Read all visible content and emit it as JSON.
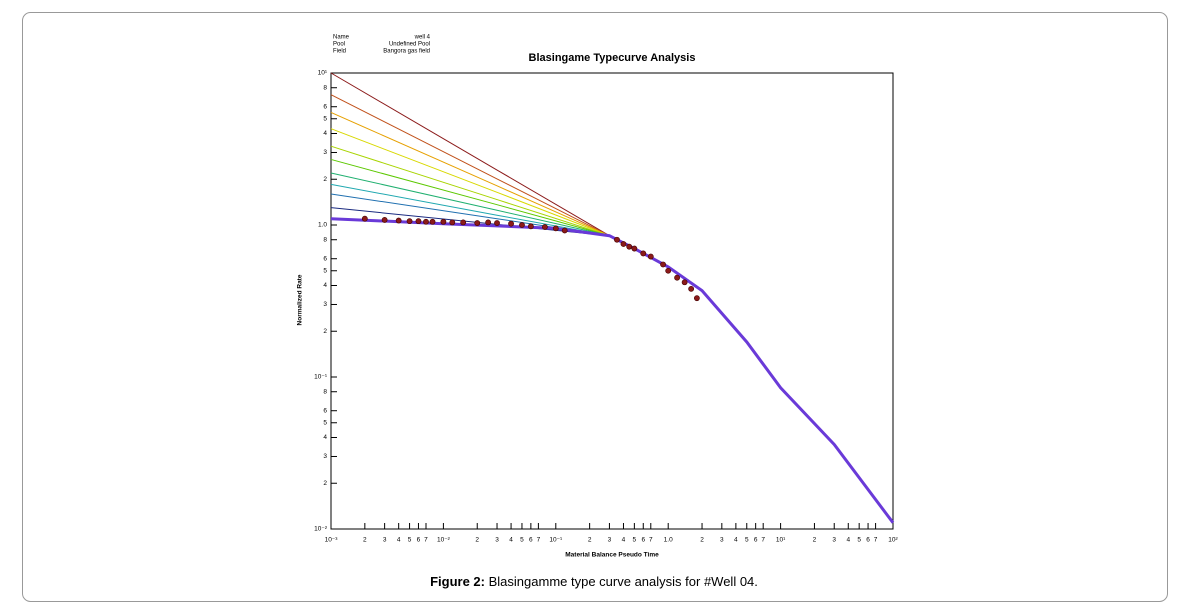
{
  "info": [
    {
      "key": "Name",
      "value": "well 4"
    },
    {
      "key": "Pool",
      "value": "Undefined Pool"
    },
    {
      "key": "Field",
      "value": "Bangora gas field"
    }
  ],
  "caption": {
    "label": "Figure 2:",
    "text": "Blasingamme type curve analysis for #Well 04."
  },
  "chart_data": {
    "type": "line",
    "title": "Blasingame Typecurve Analysis",
    "x_label": "Material Balance Pseudo Time",
    "y_label": "Normalized Rate",
    "xscale": "log",
    "yscale": "log",
    "xlim": [
      0.001,
      100
    ],
    "ylim": [
      0.01,
      10
    ],
    "xticks": [
      {
        "value": 0.001,
        "label": "10⁻³"
      },
      {
        "value": 0.002,
        "label": "2"
      },
      {
        "value": 0.003,
        "label": "3"
      },
      {
        "value": 0.004,
        "label": "4"
      },
      {
        "value": 0.005,
        "label": "5"
      },
      {
        "value": 0.006,
        "label": "6"
      },
      {
        "value": 0.007,
        "label": "7"
      },
      {
        "value": 0.01,
        "label": "10⁻²"
      },
      {
        "value": 0.02,
        "label": "2"
      },
      {
        "value": 0.03,
        "label": "3"
      },
      {
        "value": 0.04,
        "label": "4"
      },
      {
        "value": 0.05,
        "label": "5"
      },
      {
        "value": 0.06,
        "label": "6"
      },
      {
        "value": 0.07,
        "label": "7"
      },
      {
        "value": 0.1,
        "label": "10⁻¹"
      },
      {
        "value": 0.2,
        "label": "2"
      },
      {
        "value": 0.3,
        "label": "3"
      },
      {
        "value": 0.4,
        "label": "4"
      },
      {
        "value": 0.5,
        "label": "5"
      },
      {
        "value": 0.6,
        "label": "6"
      },
      {
        "value": 0.7,
        "label": "7"
      },
      {
        "value": 1,
        "label": "1.0"
      },
      2,
      3,
      4,
      5,
      6,
      7,
      {
        "value": 10,
        "label": "10¹"
      },
      {
        "value": 20,
        "label": "2"
      },
      {
        "value": 30,
        "label": "3"
      },
      {
        "value": 40,
        "label": "4"
      },
      {
        "value": 50,
        "label": "5"
      },
      {
        "value": 60,
        "label": "6"
      },
      {
        "value": 70,
        "label": "7"
      },
      {
        "value": 100,
        "label": "10²"
      }
    ],
    "yticks": [
      {
        "value": 10,
        "label": "10¹"
      },
      8,
      6,
      5,
      4,
      3,
      2,
      {
        "value": 1,
        "label": "1.0"
      },
      {
        "value": 0.8,
        "label": "8"
      },
      {
        "value": 0.6,
        "label": "6"
      },
      {
        "value": 0.5,
        "label": "5"
      },
      {
        "value": 0.4,
        "label": "4"
      },
      {
        "value": 0.3,
        "label": "3"
      },
      {
        "value": 0.2,
        "label": "2"
      },
      {
        "value": 0.1,
        "label": "10⁻¹"
      },
      {
        "value": 0.08,
        "label": "8"
      },
      {
        "value": 0.06,
        "label": "6"
      },
      {
        "value": 0.05,
        "label": "5"
      },
      {
        "value": 0.04,
        "label": "4"
      },
      {
        "value": 0.03,
        "label": "3"
      },
      {
        "value": 0.02,
        "label": "2"
      },
      {
        "value": 0.01,
        "label": "10⁻²"
      }
    ],
    "series": [
      {
        "color": "#8b1a1a",
        "x": [
          0.001,
          0.03,
          0.3
        ],
        "values": [
          10,
          2.3,
          0.85
        ]
      },
      {
        "color": "#c0501a",
        "x": [
          0.001,
          0.03,
          0.3
        ],
        "values": [
          7.2,
          2.01,
          0.85
        ]
      },
      {
        "color": "#e6a000",
        "x": [
          0.001,
          0.03,
          0.3
        ],
        "values": [
          5.5,
          1.81,
          0.85
        ]
      },
      {
        "color": "#d8d800",
        "x": [
          0.001,
          0.03,
          0.3
        ],
        "values": [
          4.3,
          1.64,
          0.85
        ]
      },
      {
        "color": "#a8d400",
        "x": [
          0.001,
          0.03,
          0.3
        ],
        "values": [
          3.3,
          1.47,
          0.85
        ]
      },
      {
        "color": "#5cc800",
        "x": [
          0.001,
          0.03,
          0.3
        ],
        "values": [
          2.7,
          1.36,
          0.85
        ]
      },
      {
        "color": "#20b070",
        "x": [
          0.001,
          0.03,
          0.3
        ],
        "values": [
          2.2,
          1.25,
          0.85
        ]
      },
      {
        "color": "#20a8b0",
        "x": [
          0.001,
          0.03,
          0.3
        ],
        "values": [
          1.85,
          1.16,
          0.85
        ]
      },
      {
        "color": "#2070b0",
        "x": [
          0.001,
          0.03,
          0.3
        ],
        "values": [
          1.6,
          1.1,
          0.85
        ]
      },
      {
        "color": "#1a2a80",
        "x": [
          0.001,
          0.03,
          0.3
        ],
        "values": [
          1.3,
          1.01,
          0.85
        ]
      },
      {
        "color": "#6a3ad8",
        "width": 3,
        "x": [
          0.001,
          0.01,
          0.1,
          0.3,
          0.5,
          1,
          2,
          5,
          10,
          30,
          100
        ],
        "values": [
          1.1,
          1.02,
          0.95,
          0.85,
          0.7,
          0.53,
          0.37,
          0.17,
          0.085,
          0.036,
          0.011
        ]
      },
      {
        "color": "#8b1a1a",
        "mode": "markers",
        "x": [
          0.002,
          0.003,
          0.004,
          0.005,
          0.006,
          0.007,
          0.008,
          0.01,
          0.012,
          0.015,
          0.02,
          0.025,
          0.03,
          0.04,
          0.05,
          0.06,
          0.08,
          0.1,
          0.12,
          0.35,
          0.4,
          0.45,
          0.5,
          0.6,
          0.7,
          0.9,
          1.0,
          1.2,
          1.4,
          1.6,
          1.8
        ],
        "values": [
          1.1,
          1.08,
          1.07,
          1.06,
          1.06,
          1.05,
          1.05,
          1.05,
          1.04,
          1.04,
          1.03,
          1.04,
          1.03,
          1.02,
          1.0,
          0.98,
          0.97,
          0.95,
          0.92,
          0.8,
          0.75,
          0.72,
          0.7,
          0.65,
          0.62,
          0.55,
          0.5,
          0.45,
          0.42,
          0.38,
          0.33
        ]
      }
    ]
  }
}
